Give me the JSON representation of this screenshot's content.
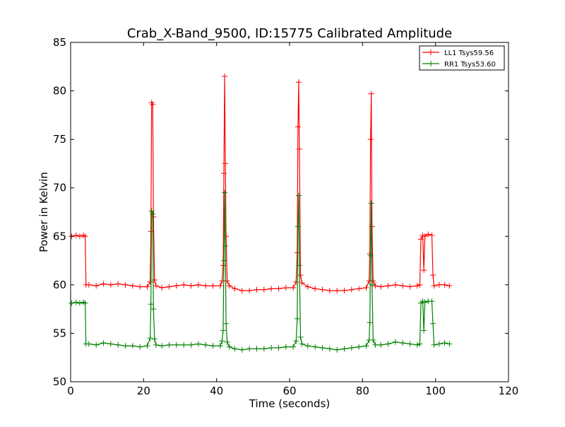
{
  "chart_data": {
    "type": "line",
    "title": "Crab_X-Band_9500, ID:15775 Calibrated Amplitude",
    "xlabel": "Time (seconds)",
    "ylabel": "Power in Kelvin",
    "xlim": [
      0,
      120
    ],
    "ylim": [
      50,
      85
    ],
    "xticks": [
      "0",
      "20",
      "40",
      "60",
      "80",
      "100",
      "120"
    ],
    "yticks": [
      "50",
      "55",
      "60",
      "65",
      "70",
      "75",
      "80",
      "85"
    ],
    "grid": false,
    "legend_position": "top-right",
    "marker": "+",
    "series": [
      {
        "name": "LL1 Tsys59.56",
        "color": "#ff0000",
        "points": [
          [
            0.3,
            65.0
          ],
          [
            1.5,
            65.1
          ],
          [
            2.5,
            65.0
          ],
          [
            3.5,
            65.1
          ],
          [
            4.0,
            65.0
          ],
          [
            4.2,
            60.0
          ],
          [
            5,
            60.0
          ],
          [
            7,
            59.9
          ],
          [
            9,
            60.1
          ],
          [
            11,
            60.0
          ],
          [
            13,
            60.1
          ],
          [
            15,
            60.0
          ],
          [
            17,
            59.9
          ],
          [
            19,
            59.8
          ],
          [
            21,
            59.8
          ],
          [
            21.8,
            60.3
          ],
          [
            22.0,
            65.5
          ],
          [
            22.2,
            78.8
          ],
          [
            22.5,
            78.6
          ],
          [
            22.7,
            67.0
          ],
          [
            23.0,
            60.5
          ],
          [
            23.4,
            59.9
          ],
          [
            25,
            59.7
          ],
          [
            27,
            59.8
          ],
          [
            29,
            59.9
          ],
          [
            31,
            60.0
          ],
          [
            33,
            59.9
          ],
          [
            35,
            60.0
          ],
          [
            37,
            59.9
          ],
          [
            39,
            59.9
          ],
          [
            41,
            59.9
          ],
          [
            41.5,
            60.4
          ],
          [
            41.8,
            62.0
          ],
          [
            42.0,
            71.5
          ],
          [
            42.2,
            81.5
          ],
          [
            42.4,
            72.5
          ],
          [
            42.6,
            65.0
          ],
          [
            42.9,
            60.4
          ],
          [
            43.5,
            59.9
          ],
          [
            45,
            59.6
          ],
          [
            47,
            59.4
          ],
          [
            49,
            59.4
          ],
          [
            51,
            59.5
          ],
          [
            53,
            59.5
          ],
          [
            55,
            59.6
          ],
          [
            57,
            59.6
          ],
          [
            59,
            59.7
          ],
          [
            61,
            59.7
          ],
          [
            61.8,
            60.3
          ],
          [
            62.1,
            63.3
          ],
          [
            62.3,
            76.3
          ],
          [
            62.5,
            80.9
          ],
          [
            62.7,
            74.0
          ],
          [
            63.0,
            61.0
          ],
          [
            63.4,
            60.2
          ],
          [
            65,
            59.8
          ],
          [
            67,
            59.6
          ],
          [
            69,
            59.5
          ],
          [
            71,
            59.4
          ],
          [
            73,
            59.4
          ],
          [
            75,
            59.4
          ],
          [
            77,
            59.5
          ],
          [
            79,
            59.6
          ],
          [
            81,
            59.7
          ],
          [
            81.8,
            60.4
          ],
          [
            82.0,
            63.2
          ],
          [
            82.2,
            75.0
          ],
          [
            82.4,
            79.7
          ],
          [
            82.6,
            66.0
          ],
          [
            82.9,
            60.4
          ],
          [
            83.5,
            59.9
          ],
          [
            85,
            59.8
          ],
          [
            87,
            59.9
          ],
          [
            89,
            60.0
          ],
          [
            91,
            59.9
          ],
          [
            93,
            59.8
          ],
          [
            95,
            59.9
          ],
          [
            95.7,
            60.0
          ],
          [
            96.0,
            64.7
          ],
          [
            96.5,
            65.1
          ],
          [
            96.8,
            61.5
          ],
          [
            97.1,
            65.0
          ],
          [
            98,
            65.2
          ],
          [
            99,
            65.1
          ],
          [
            99.3,
            61.0
          ],
          [
            99.6,
            59.9
          ],
          [
            101,
            60.0
          ],
          [
            102.5,
            60.0
          ],
          [
            103.8,
            59.9
          ]
        ]
      },
      {
        "name": "RR1 Tsys53.60",
        "color": "#008000",
        "points": [
          [
            0.3,
            58.1
          ],
          [
            1.5,
            58.2
          ],
          [
            2.5,
            58.1
          ],
          [
            3.5,
            58.2
          ],
          [
            4.0,
            58.1
          ],
          [
            4.2,
            53.9
          ],
          [
            5,
            53.9
          ],
          [
            7,
            53.8
          ],
          [
            9,
            54.0
          ],
          [
            11,
            53.9
          ],
          [
            13,
            53.8
          ],
          [
            15,
            53.7
          ],
          [
            17,
            53.7
          ],
          [
            19,
            53.6
          ],
          [
            21,
            53.7
          ],
          [
            21.8,
            54.5
          ],
          [
            22.0,
            58.0
          ],
          [
            22.2,
            67.6
          ],
          [
            22.5,
            67.3
          ],
          [
            22.7,
            57.5
          ],
          [
            23.0,
            54.4
          ],
          [
            23.4,
            53.8
          ],
          [
            25,
            53.7
          ],
          [
            27,
            53.8
          ],
          [
            29,
            53.8
          ],
          [
            31,
            53.8
          ],
          [
            33,
            53.8
          ],
          [
            35,
            53.9
          ],
          [
            37,
            53.8
          ],
          [
            39,
            53.7
          ],
          [
            41,
            53.7
          ],
          [
            41.5,
            54.2
          ],
          [
            41.8,
            55.3
          ],
          [
            42.0,
            62.5
          ],
          [
            42.2,
            69.5
          ],
          [
            42.4,
            64.0
          ],
          [
            42.6,
            56.0
          ],
          [
            42.9,
            54.1
          ],
          [
            43.5,
            53.6
          ],
          [
            45,
            53.4
          ],
          [
            47,
            53.3
          ],
          [
            49,
            53.4
          ],
          [
            51,
            53.4
          ],
          [
            53,
            53.4
          ],
          [
            55,
            53.5
          ],
          [
            57,
            53.5
          ],
          [
            59,
            53.6
          ],
          [
            61,
            53.6
          ],
          [
            61.8,
            54.2
          ],
          [
            62.1,
            56.5
          ],
          [
            62.3,
            66.0
          ],
          [
            62.5,
            69.2
          ],
          [
            62.7,
            62.0
          ],
          [
            63.0,
            54.6
          ],
          [
            63.4,
            53.9
          ],
          [
            65,
            53.7
          ],
          [
            67,
            53.6
          ],
          [
            69,
            53.5
          ],
          [
            71,
            53.4
          ],
          [
            73,
            53.3
          ],
          [
            75,
            53.4
          ],
          [
            77,
            53.5
          ],
          [
            79,
            53.6
          ],
          [
            81,
            53.7
          ],
          [
            81.8,
            54.3
          ],
          [
            82.0,
            56.1
          ],
          [
            82.2,
            63.0
          ],
          [
            82.4,
            68.4
          ],
          [
            82.6,
            60.0
          ],
          [
            82.9,
            54.3
          ],
          [
            83.5,
            53.8
          ],
          [
            85,
            53.8
          ],
          [
            87,
            53.9
          ],
          [
            89,
            54.1
          ],
          [
            91,
            54.0
          ],
          [
            93,
            53.9
          ],
          [
            95,
            53.8
          ],
          [
            95.7,
            53.9
          ],
          [
            96.0,
            58.1
          ],
          [
            96.5,
            58.3
          ],
          [
            96.8,
            55.3
          ],
          [
            97.1,
            58.2
          ],
          [
            98,
            58.3
          ],
          [
            99,
            58.3
          ],
          [
            99.3,
            56.0
          ],
          [
            99.6,
            53.8
          ],
          [
            101,
            53.9
          ],
          [
            102.5,
            54.0
          ],
          [
            103.8,
            53.9
          ]
        ]
      }
    ]
  }
}
